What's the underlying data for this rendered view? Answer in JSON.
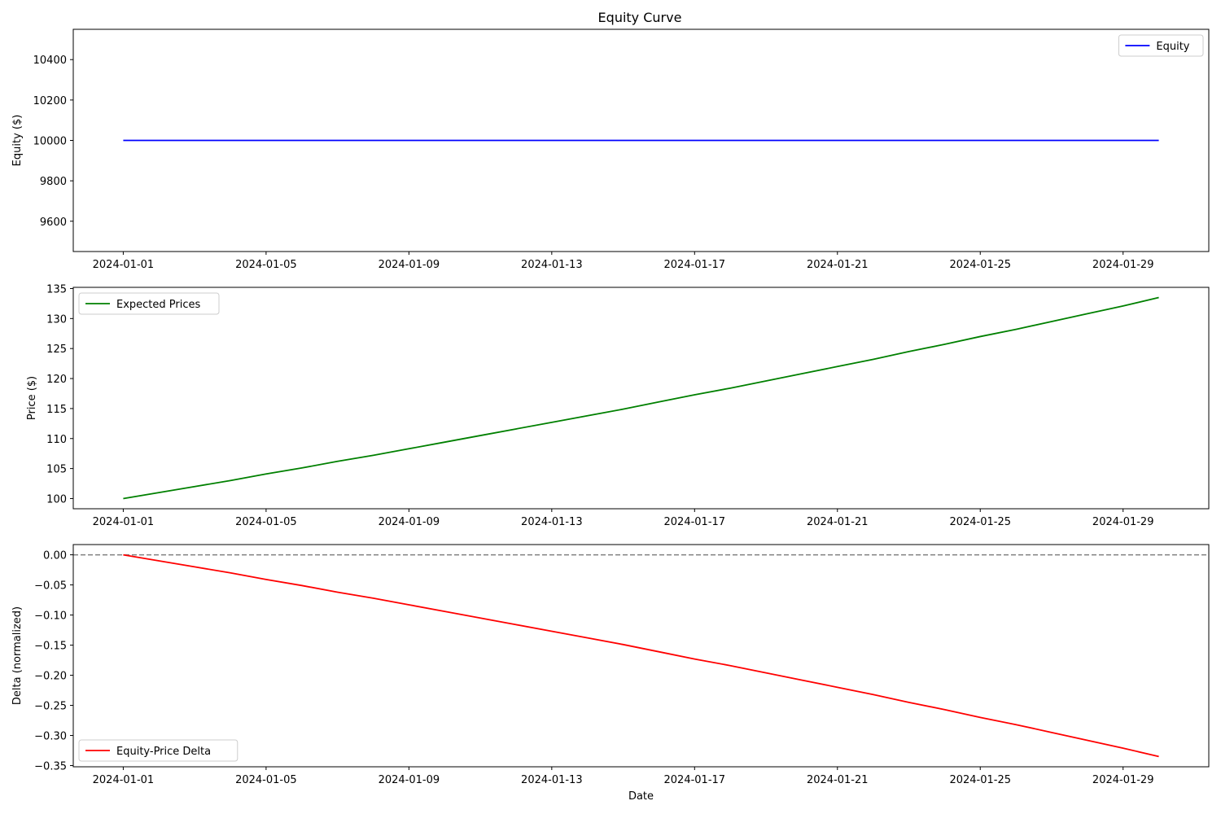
{
  "figure": {
    "title": "Equity Curve"
  },
  "chart_data": [
    {
      "type": "line",
      "title": "Equity Curve",
      "xlabel": "",
      "ylabel": "Equity ($)",
      "x_ticks": [
        "2024-01-01",
        "2024-01-05",
        "2024-01-09",
        "2024-01-13",
        "2024-01-17",
        "2024-01-21",
        "2024-01-25",
        "2024-01-29"
      ],
      "y_ticks": [
        9600,
        9800,
        10000,
        10200,
        10400
      ],
      "y_tick_labels": [
        "9600",
        "9800",
        "10000",
        "10200",
        "10400"
      ],
      "xlim": [
        "2023-12-30.6",
        "2024-01-31.4"
      ],
      "ylim": [
        9450,
        10550
      ],
      "legend": "upper right",
      "series": [
        {
          "name": "Equity",
          "color": "#0000ff",
          "x": [
            "2024-01-01",
            "2024-01-30"
          ],
          "y": [
            10000,
            10000
          ]
        }
      ]
    },
    {
      "type": "line",
      "title": "",
      "xlabel": "",
      "ylabel": "Price ($)",
      "x_ticks": [
        "2024-01-01",
        "2024-01-05",
        "2024-01-09",
        "2024-01-13",
        "2024-01-17",
        "2024-01-21",
        "2024-01-25",
        "2024-01-29"
      ],
      "y_ticks": [
        100,
        105,
        110,
        115,
        120,
        125,
        130,
        135
      ],
      "y_tick_labels": [
        "100",
        "105",
        "110",
        "115",
        "120",
        "125",
        "130",
        "135"
      ],
      "xlim": [
        "2023-12-30.6",
        "2024-01-31.4"
      ],
      "ylim": [
        98.3,
        135.2
      ],
      "legend": "upper left",
      "series": [
        {
          "name": "Expected Prices",
          "color": "#008000",
          "x": [
            "2024-01-01",
            "2024-01-02",
            "2024-01-03",
            "2024-01-04",
            "2024-01-05",
            "2024-01-06",
            "2024-01-07",
            "2024-01-08",
            "2024-01-09",
            "2024-01-10",
            "2024-01-11",
            "2024-01-12",
            "2024-01-13",
            "2024-01-14",
            "2024-01-15",
            "2024-01-16",
            "2024-01-17",
            "2024-01-18",
            "2024-01-19",
            "2024-01-20",
            "2024-01-21",
            "2024-01-22",
            "2024-01-23",
            "2024-01-24",
            "2024-01-25",
            "2024-01-26",
            "2024-01-27",
            "2024-01-28",
            "2024-01-29",
            "2024-01-30"
          ],
          "y": [
            100.0,
            101.0,
            102.0,
            103.0,
            104.1,
            105.1,
            106.2,
            107.2,
            108.3,
            109.4,
            110.5,
            111.6,
            112.7,
            113.8,
            114.9,
            116.1,
            117.3,
            118.4,
            119.6,
            120.8,
            122.0,
            123.2,
            124.5,
            125.7,
            127.0,
            128.2,
            129.5,
            130.8,
            132.1,
            133.5
          ]
        }
      ]
    },
    {
      "type": "line",
      "title": "",
      "xlabel": "Date",
      "ylabel": "Delta (normalized)",
      "x_ticks": [
        "2024-01-01",
        "2024-01-05",
        "2024-01-09",
        "2024-01-13",
        "2024-01-17",
        "2024-01-21",
        "2024-01-25",
        "2024-01-29"
      ],
      "y_ticks": [
        -0.35,
        -0.3,
        -0.25,
        -0.2,
        -0.15,
        -0.1,
        -0.05,
        0.0
      ],
      "y_tick_labels": [
        "−0.35",
        "−0.30",
        "−0.25",
        "−0.20",
        "−0.15",
        "−0.10",
        "−0.05",
        "0.00"
      ],
      "xlim": [
        "2023-12-30.6",
        "2024-01-31.4"
      ],
      "ylim": [
        -0.352,
        0.017
      ],
      "legend": "lower left",
      "reference_line": {
        "y": 0,
        "color": "#808080",
        "style": "dashed"
      },
      "series": [
        {
          "name": "Equity-Price Delta",
          "color": "#ff0000",
          "x": [
            "2024-01-01",
            "2024-01-02",
            "2024-01-03",
            "2024-01-04",
            "2024-01-05",
            "2024-01-06",
            "2024-01-07",
            "2024-01-08",
            "2024-01-09",
            "2024-01-10",
            "2024-01-11",
            "2024-01-12",
            "2024-01-13",
            "2024-01-14",
            "2024-01-15",
            "2024-01-16",
            "2024-01-17",
            "2024-01-18",
            "2024-01-19",
            "2024-01-20",
            "2024-01-21",
            "2024-01-22",
            "2024-01-23",
            "2024-01-24",
            "2024-01-25",
            "2024-01-26",
            "2024-01-27",
            "2024-01-28",
            "2024-01-29",
            "2024-01-30"
          ],
          "y": [
            0.0,
            -0.01,
            -0.02,
            -0.03,
            -0.041,
            -0.051,
            -0.062,
            -0.072,
            -0.083,
            -0.094,
            -0.105,
            -0.116,
            -0.127,
            -0.138,
            -0.149,
            -0.161,
            -0.173,
            -0.184,
            -0.196,
            -0.208,
            -0.22,
            -0.232,
            -0.245,
            -0.257,
            -0.27,
            -0.282,
            -0.295,
            -0.308,
            -0.321,
            -0.335
          ]
        }
      ]
    }
  ]
}
